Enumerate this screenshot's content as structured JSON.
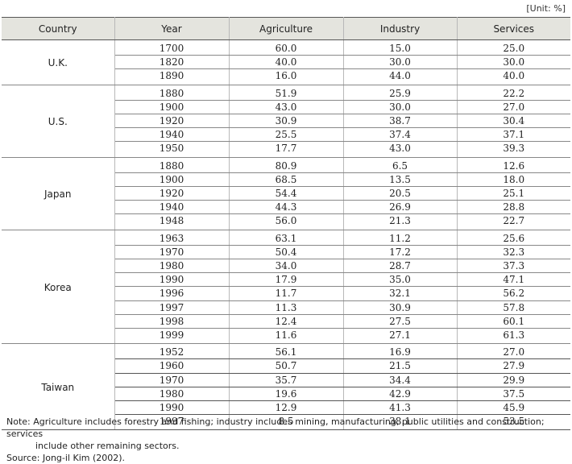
{
  "unit_label": "[Unit: %]",
  "headers": [
    "Country",
    "Year",
    "Agriculture",
    "Industry",
    "Services"
  ],
  "groups": [
    {
      "country": "U.K.",
      "rows": [
        [
          "1700",
          "60.0",
          "15.0",
          "25.0"
        ],
        [
          "1820",
          "40.0",
          "30.0",
          "30.0"
        ],
        [
          "1890",
          "16.0",
          "44.0",
          "40.0"
        ]
      ]
    },
    {
      "country": "U.S.",
      "rows": [
        [
          "1880",
          "51.9",
          "25.9",
          "22.2"
        ],
        [
          "1900",
          "43.0",
          "30.0",
          "27.0"
        ],
        [
          "1920",
          "30.9",
          "38.7",
          "30.4"
        ],
        [
          "1940",
          "25.5",
          "37.4",
          "37.1"
        ],
        [
          "1950",
          "17.7",
          "43.0",
          "39.3"
        ]
      ]
    },
    {
      "country": "Japan",
      "rows": [
        [
          "1880",
          "80.9",
          "6.5",
          "12.6"
        ],
        [
          "1900",
          "68.5",
          "13.5",
          "18.0"
        ],
        [
          "1920",
          "54.4",
          "20.5",
          "25.1"
        ],
        [
          "1940",
          "44.3",
          "26.9",
          "28.8"
        ],
        [
          "1948",
          "56.0",
          "21.3",
          "22.7"
        ]
      ]
    },
    {
      "country": "Korea",
      "rows": [
        [
          "1963",
          "63.1",
          "11.2",
          "25.6"
        ],
        [
          "1970",
          "50.4",
          "17.2",
          "32.3"
        ],
        [
          "1980",
          "34.0",
          "28.7",
          "37.3"
        ],
        [
          "1990",
          "17.9",
          "35.0",
          "47.1"
        ],
        [
          "1996",
          "11.7",
          "32.1",
          "56.2"
        ],
        [
          "1997",
          "11.3",
          "30.9",
          "57.8"
        ],
        [
          "1998",
          "12.4",
          "27.5",
          "60.1"
        ],
        [
          "1999",
          "11.6",
          "27.1",
          "61.3"
        ]
      ]
    },
    {
      "country": "Taiwan",
      "rows": [
        [
          "1952",
          "56.1",
          "16.9",
          "27.0"
        ],
        [
          "1960",
          "50.7",
          "21.5",
          "27.9"
        ],
        [
          "1970",
          "35.7",
          "34.4",
          "29.9"
        ],
        [
          "1980",
          "19.6",
          "42.9",
          "37.5"
        ],
        [
          "1990",
          "12.9",
          "41.3",
          "45.9"
        ],
        [
          "1997",
          "8.5",
          "38.1",
          "53.5"
        ]
      ]
    }
  ],
  "note_line1": "Note: Agriculture includes forestry and fishing; industry includes mining, manufacturing, public utilities and construction; services",
  "note_line2": "include other remaining sectors.",
  "source": "Source: Jong-il Kim (2002)."
}
